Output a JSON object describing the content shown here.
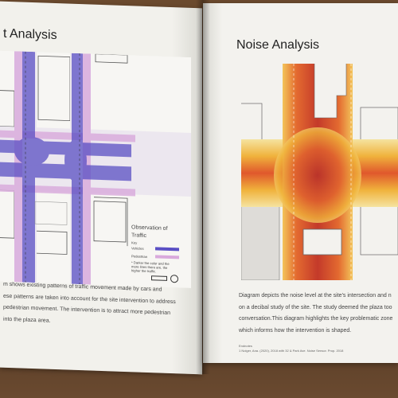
{
  "left_page": {
    "title": "t Analysis",
    "legend": {
      "title_line1": "Observation of",
      "title_line2": "Traffic",
      "key": "Key",
      "vehicles": "Vehicles",
      "pedestrian": "Pedestrian",
      "note": "* Darker the color and the more lines there are, the higher the traffic.",
      "colors": {
        "vehicles": "#5a4fc4",
        "pedestrian": "#d9a9dc"
      }
    },
    "paragraph": [
      "m shows existing patterns of traffic movement made by cars and",
      "ese patterns are taken into account for the site intervention to address",
      "pedestrian movement. The intervention is to attract more pedestrian",
      "into the plaza area."
    ]
  },
  "right_page": {
    "title": "Noise Analysis",
    "paragraph": [
      "Diagram depicts the noise level at the site's intersection and n",
      "on a decibal study of the site. The study deemed the plaza too",
      "conversation.This diagram highlights the key problematic zone",
      "which informs how the intervention is shaped."
    ],
    "footnote_1": "Endnotes",
    "footnote_2": "1 Noiger, Ana. (2020), 2018 with 32 & Park Ave. Noise Sensor. Prop. 2018"
  }
}
